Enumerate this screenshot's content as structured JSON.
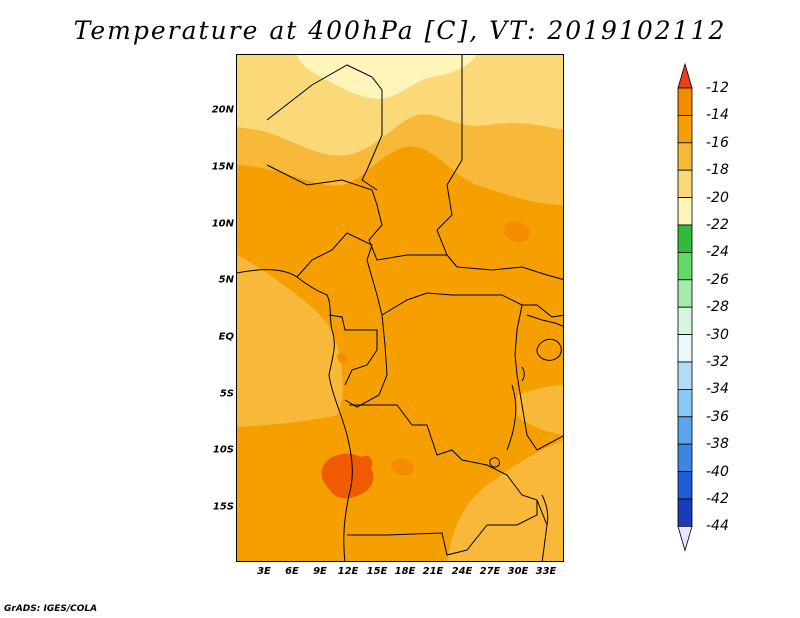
{
  "title": "Temperature at 400hPa [C], VT: 2019102112",
  "credit": "GrADS: IGES/COLA",
  "map": {
    "lat_labels": [
      "20N",
      "15N",
      "10N",
      "5N",
      "EQ",
      "5S",
      "10S",
      "15S"
    ],
    "lon_labels": [
      "3E",
      "6E",
      "9E",
      "12E",
      "15E",
      "18E",
      "21E",
      "24E",
      "27E",
      "30E",
      "33E"
    ]
  },
  "colorbar": {
    "labels": [
      "-12",
      "-14",
      "-16",
      "-18",
      "-20",
      "-22",
      "-24",
      "-26",
      "-28",
      "-30",
      "-32",
      "-34",
      "-36",
      "-38",
      "-40",
      "-42",
      "-44"
    ],
    "colors": [
      "#f05a00",
      "#f58c00",
      "#f5a000",
      "#f8b93a",
      "#fbd878",
      "#fff4ba",
      "#31bb3a",
      "#63d966",
      "#a6ebaa",
      "#d7f5dc",
      "#e9f8fb",
      "#b4dcf8",
      "#8cc8f4",
      "#5aa5ec",
      "#3a86e2",
      "#1e5ed2",
      "#1b3cb8",
      "#0f1f80"
    ],
    "top_arrow_color": "#e8401a",
    "bottom_arrow_color": "#e6e6ff"
  },
  "chart_data": {
    "type": "heatmap",
    "title": "Temperature at 400hPa [C], VT: 2019102112",
    "variable": "Temperature at 400hPa",
    "units": "C",
    "valid_time": "2019102112",
    "lat_range": [
      -20,
      25
    ],
    "lon_range": [
      0,
      35
    ],
    "levels": [
      -44,
      -42,
      -40,
      -38,
      -36,
      -34,
      -32,
      -30,
      -28,
      -26,
      -24,
      -22,
      -20,
      -18,
      -16,
      -14,
      -12
    ],
    "dominant_value_range": [
      -16,
      -14
    ],
    "warm_patches_value_range": [
      -14,
      -12
    ],
    "cool_north_value_range": [
      -22,
      -18
    ]
  }
}
